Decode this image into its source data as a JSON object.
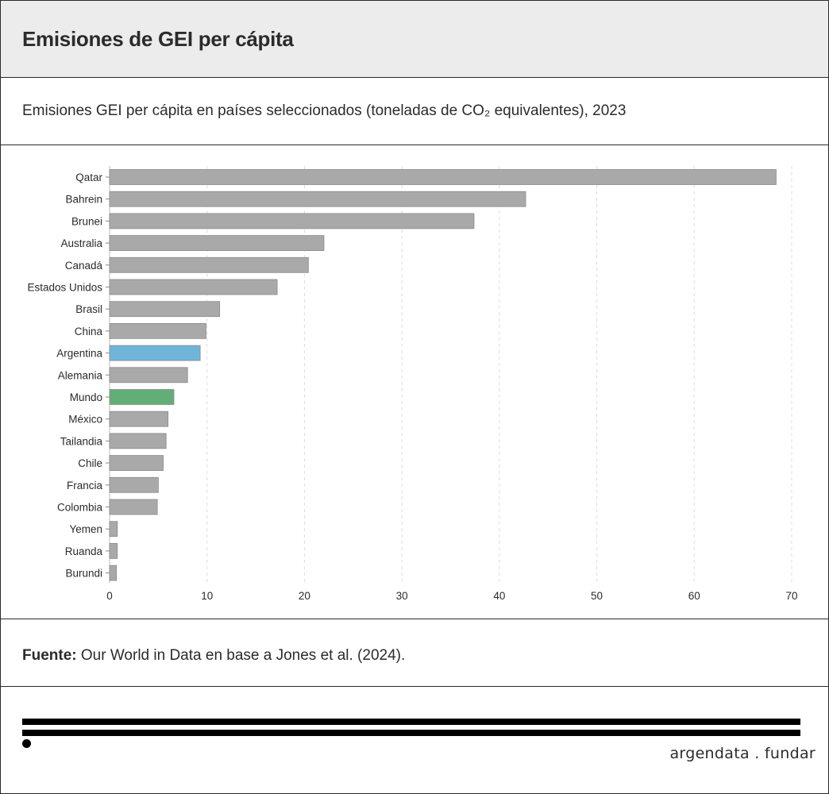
{
  "header": {
    "title": "Emisiones de GEI per cápita"
  },
  "subtitle": "Emisiones GEI per cápita en países seleccionados (toneladas de CO₂  equivalentes), 2023",
  "source": {
    "label": "Fuente:",
    "text": "Our World in Data en base a Jones et al. (2024)."
  },
  "brand": {
    "text": "argendata . fundar"
  },
  "colors": {
    "default_bar": "#a9a9a9",
    "highlight_argentina": "#6fb5d9",
    "highlight_mundo": "#63ad76",
    "bar_stroke": "#8a8a8a",
    "grid": "#dddddd"
  },
  "chart_data": {
    "type": "bar",
    "orientation": "horizontal",
    "title": "Emisiones GEI per cápita en países seleccionados (toneladas de CO₂  equivalentes), 2023",
    "xlabel": "",
    "ylabel": "",
    "xlim": [
      0,
      70
    ],
    "xticks": [
      0,
      10,
      20,
      30,
      40,
      50,
      60,
      70
    ],
    "grid": "vertical-dashed",
    "categories": [
      "Qatar",
      "Bahrein",
      "Brunei",
      "Australia",
      "Canadá",
      "Estados Unidos",
      "Brasil",
      "China",
      "Argentina",
      "Alemania",
      "Mundo",
      "México",
      "Tailandia",
      "Chile",
      "Francia",
      "Colombia",
      "Yemen",
      "Ruanda",
      "Burundi"
    ],
    "values": [
      68.4,
      42.7,
      37.4,
      22.0,
      20.4,
      17.2,
      11.3,
      9.9,
      9.3,
      8.0,
      6.6,
      6.0,
      5.8,
      5.5,
      5.0,
      4.9,
      0.8,
      0.8,
      0.7
    ],
    "highlights": {
      "Argentina": "highlight_argentina",
      "Mundo": "highlight_mundo"
    }
  }
}
